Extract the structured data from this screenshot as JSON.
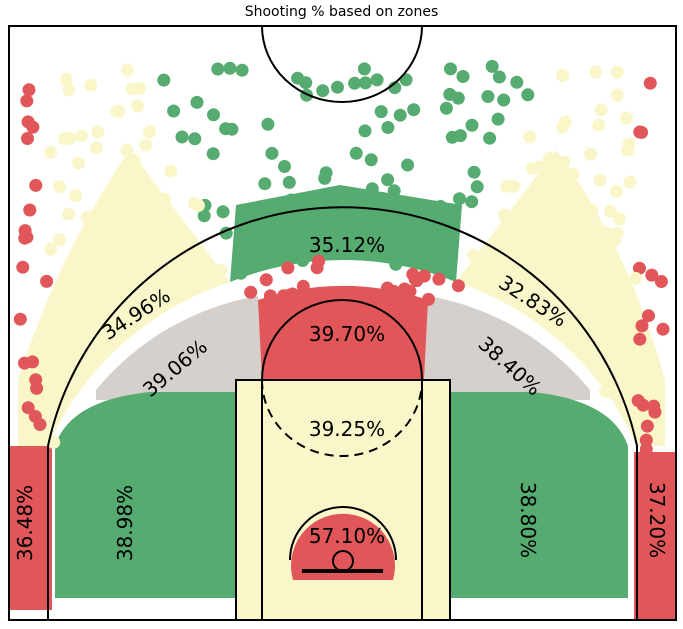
{
  "chart_data": {
    "type": "scatter",
    "title": "Shooting % based on zones",
    "xlabel": "",
    "ylabel": "",
    "grid": false,
    "colors": {
      "hot": "#e05659",
      "above": "#55ab70",
      "neutral": "#d6d0cc",
      "below": "#f9f7c9",
      "lines": "#000000"
    },
    "zones": [
      {
        "id": "restricted-area",
        "value": "57.10%",
        "color": "#e05659"
      },
      {
        "id": "paint-non-ra",
        "value": "39.25%",
        "color": "#f9f7c9"
      },
      {
        "id": "mid-center",
        "value": "39.70%",
        "color": "#e05659"
      },
      {
        "id": "mid-left-wing",
        "value": "39.06%",
        "color": "#d6d0cc"
      },
      {
        "id": "mid-right-wing",
        "value": "38.40%",
        "color": "#d6d0cc"
      },
      {
        "id": "mid-left-baseline",
        "value": "38.98%",
        "color": "#55ab70"
      },
      {
        "id": "mid-right-baseline",
        "value": "38.80%",
        "color": "#55ab70"
      },
      {
        "id": "left-corner-3",
        "value": "36.48%",
        "color": "#e05659"
      },
      {
        "id": "right-corner-3",
        "value": "37.20%",
        "color": "#e05659"
      },
      {
        "id": "left-wing-3",
        "value": "34.96%",
        "color": "#f9f7c9"
      },
      {
        "id": "right-wing-3",
        "value": "32.83%",
        "color": "#f9f7c9"
      },
      {
        "id": "top-3",
        "value": "35.12%",
        "color": "#55ab70"
      }
    ]
  }
}
